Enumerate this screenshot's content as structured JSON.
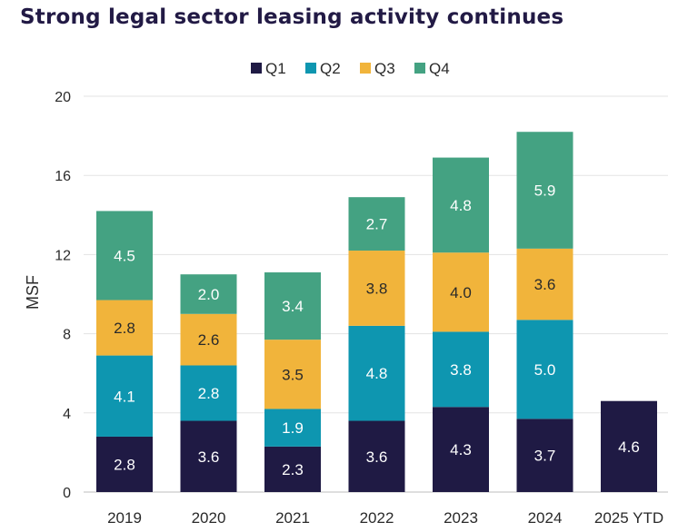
{
  "chart_data": {
    "type": "bar",
    "stacked": true,
    "title": "Strong legal sector leasing activity continues",
    "ylabel": "MSF",
    "xlabel": "",
    "ylim": [
      0,
      20
    ],
    "yticks": [
      0,
      4,
      8,
      12,
      16,
      20
    ],
    "grid": true,
    "legend_placement": "top-center",
    "categories": [
      "2019",
      "2020",
      "2021",
      "2022",
      "2023",
      "2024",
      "2025 YTD"
    ],
    "series": [
      {
        "name": "Q1",
        "color": "#1f1a44",
        "label_color": "#ffffff",
        "values": [
          2.8,
          3.6,
          2.3,
          3.6,
          4.3,
          3.7,
          4.6
        ]
      },
      {
        "name": "Q2",
        "color": "#0e96b0",
        "label_color": "#ffffff",
        "values": [
          4.1,
          2.8,
          1.9,
          4.8,
          3.8,
          5.0,
          null
        ]
      },
      {
        "name": "Q3",
        "color": "#f1b43b",
        "label_color": "#2a2a2a",
        "values": [
          2.8,
          2.6,
          3.5,
          3.8,
          4.0,
          3.6,
          null
        ]
      },
      {
        "name": "Q4",
        "color": "#44a282",
        "label_color": "#ffffff",
        "values": [
          4.5,
          2.0,
          3.4,
          2.7,
          4.8,
          5.9,
          null
        ]
      }
    ]
  }
}
